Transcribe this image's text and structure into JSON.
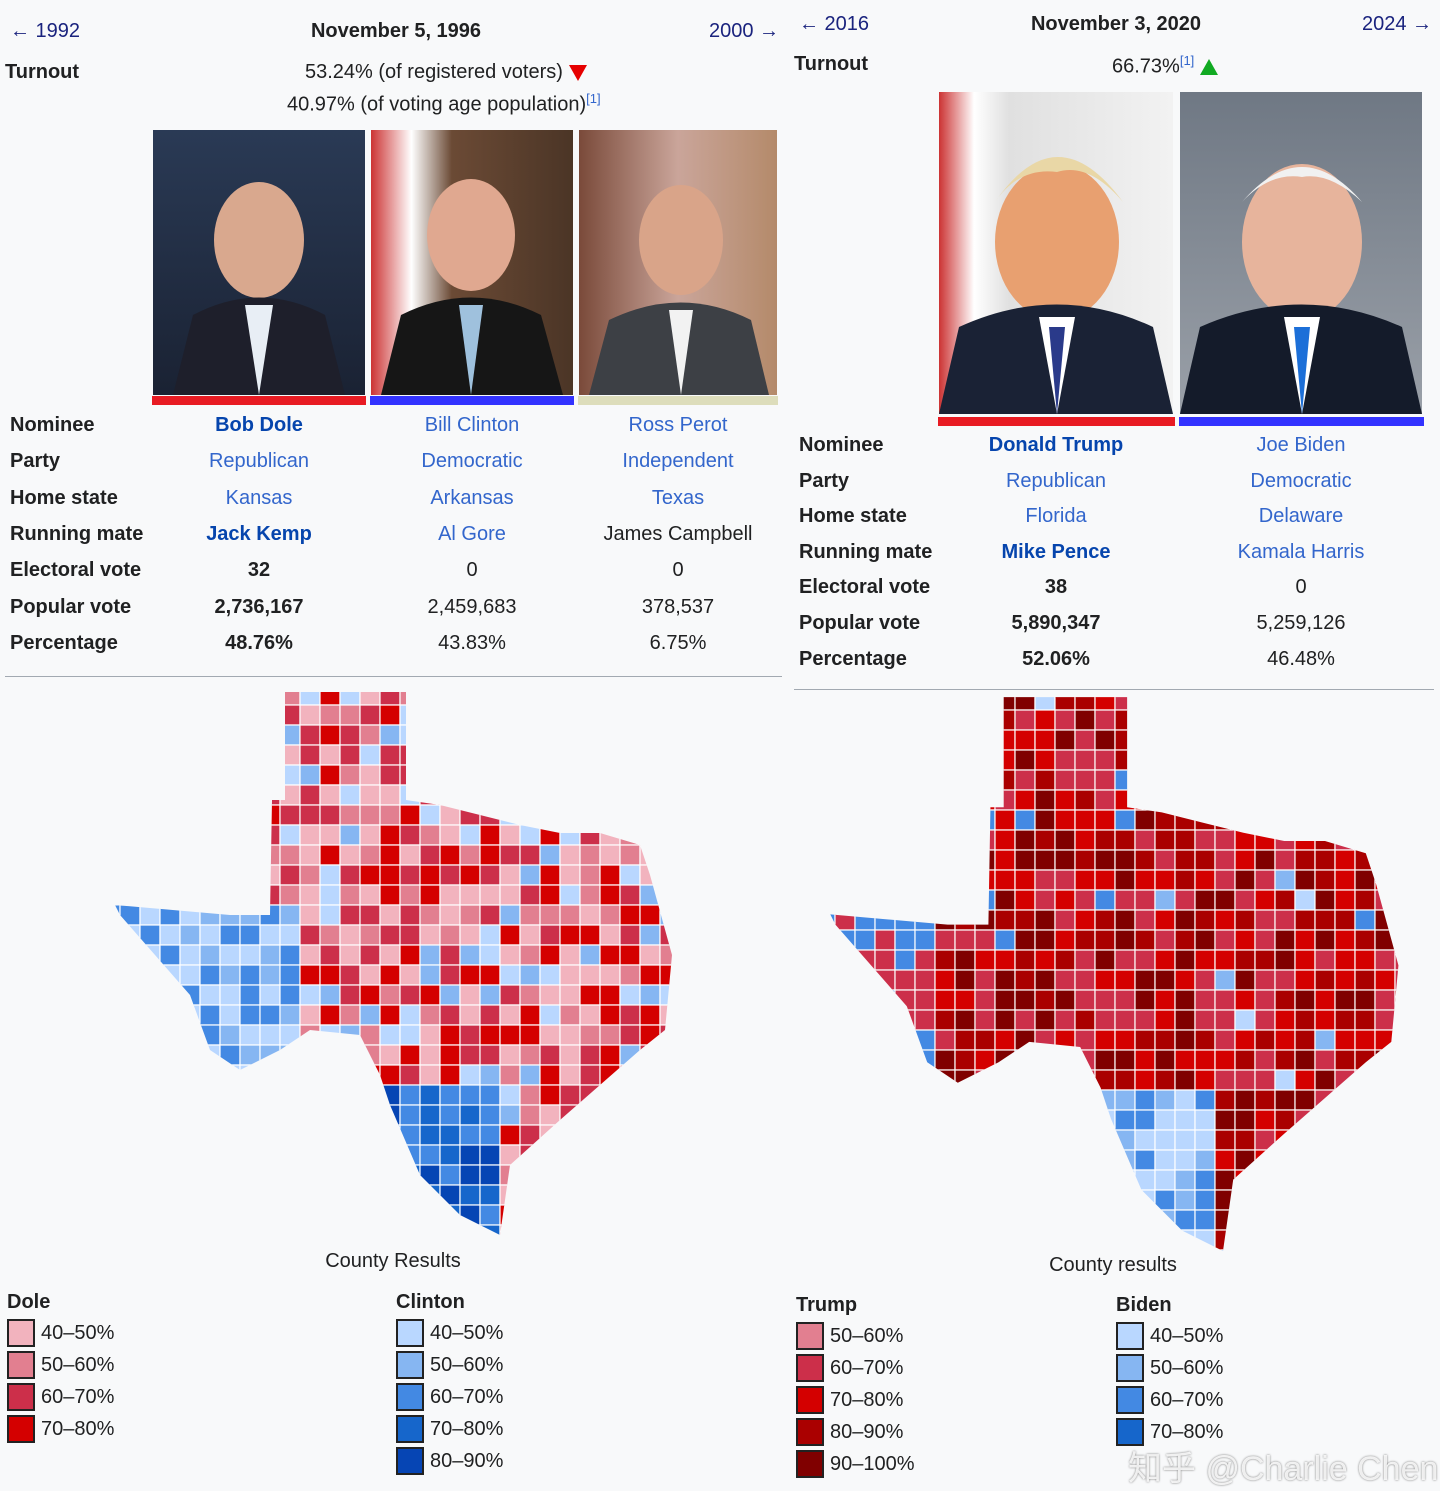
{
  "left": {
    "prev": "← 1992",
    "date": "November 5, 1996",
    "next": "2000 →",
    "turnout_label": "Turnout",
    "turnout_1": "53.24% (of registered voters)",
    "turnout_2": "40.97% (of voting age population)",
    "ref": "[1]",
    "turnout_trend": "down",
    "row_labels": [
      "Nominee",
      "Party",
      "Home state",
      "Running mate",
      "Electoral vote",
      "Popular vote",
      "Percentage"
    ],
    "candidates": [
      {
        "nominee": "Bob Dole",
        "party": "Republican",
        "home_state": "Kansas",
        "running_mate": "Jack Kemp",
        "electoral": "32",
        "popular": "2,736,167",
        "percentage": "48.76%",
        "color": "#e81b23",
        "winner": true
      },
      {
        "nominee": "Bill Clinton",
        "party": "Democratic",
        "home_state": "Arkansas",
        "running_mate": "Al Gore",
        "electoral": "0",
        "popular": "2,459,683",
        "percentage": "43.83%",
        "color": "#3333ff",
        "winner": false
      },
      {
        "nominee": "Ross Perot",
        "party": "Independent",
        "home_state": "Texas",
        "running_mate": "James Campbell",
        "electoral": "0",
        "popular": "378,537",
        "percentage": "6.75%",
        "color": "#ddddbb",
        "winner": false
      }
    ],
    "map_caption": "County Results",
    "legend": [
      {
        "title": "Dole",
        "items": [
          {
            "label": "40–50%",
            "color": "#f2b3be"
          },
          {
            "label": "50–60%",
            "color": "#e27f90"
          },
          {
            "label": "60–70%",
            "color": "#cc2f4a"
          },
          {
            "label": "70–80%",
            "color": "#d40000"
          }
        ]
      },
      {
        "title": "Clinton",
        "items": [
          {
            "label": "40–50%",
            "color": "#b9d7ff"
          },
          {
            "label": "50–60%",
            "color": "#86b6f2"
          },
          {
            "label": "60–70%",
            "color": "#4389e3"
          },
          {
            "label": "70–80%",
            "color": "#1666cb"
          },
          {
            "label": "80–90%",
            "color": "#0645b4"
          }
        ]
      }
    ]
  },
  "right": {
    "prev": "← 2016",
    "date": "November 3, 2020",
    "next": "2024 →",
    "turnout_label": "Turnout",
    "turnout_1": "66.73%",
    "ref": "[1]",
    "turnout_trend": "up",
    "row_labels": [
      "Nominee",
      "Party",
      "Home state",
      "Running mate",
      "Electoral vote",
      "Popular vote",
      "Percentage"
    ],
    "candidates": [
      {
        "nominee": "Donald Trump",
        "party": "Republican",
        "home_state": "Florida",
        "running_mate": "Mike Pence",
        "electoral": "38",
        "popular": "5,890,347",
        "percentage": "52.06%",
        "color": "#e81b23",
        "winner": true
      },
      {
        "nominee": "Joe Biden",
        "party": "Democratic",
        "home_state": "Delaware",
        "running_mate": "Kamala Harris",
        "electoral": "0",
        "popular": "5,259,126",
        "percentage": "46.48%",
        "color": "#3333ff",
        "winner": false
      }
    ],
    "map_caption": "County results",
    "legend": [
      {
        "title": "Trump",
        "items": [
          {
            "label": "50–60%",
            "color": "#e27f90"
          },
          {
            "label": "60–70%",
            "color": "#cc2f4a"
          },
          {
            "label": "70–80%",
            "color": "#d40000"
          },
          {
            "label": "80–90%",
            "color": "#aa0000"
          },
          {
            "label": "90–100%",
            "color": "#800000"
          }
        ]
      },
      {
        "title": "Biden",
        "items": [
          {
            "label": "40–50%",
            "color": "#b9d7ff"
          },
          {
            "label": "50–60%",
            "color": "#86b6f2"
          },
          {
            "label": "60–70%",
            "color": "#4389e3"
          },
          {
            "label": "70–80%",
            "color": "#1666cb"
          }
        ]
      }
    ]
  },
  "watermark": "知乎 @Charlie Chen"
}
